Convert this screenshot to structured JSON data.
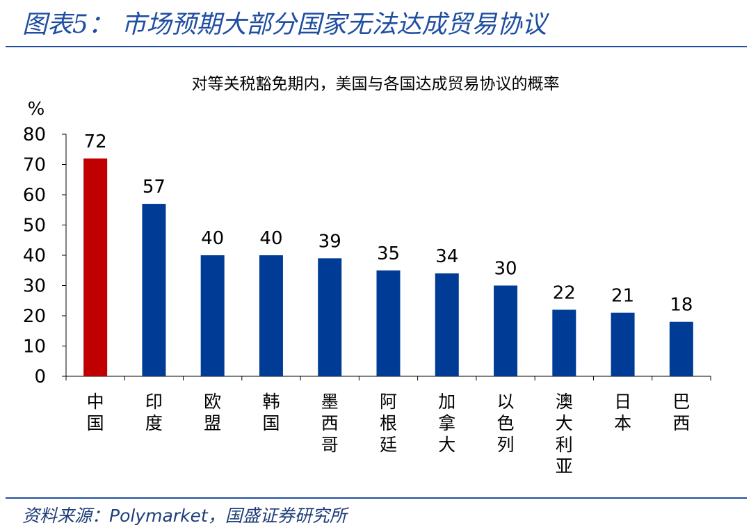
{
  "header": {
    "figure_title": "图表5：  市场预期大部分国家无法达成贸易协议"
  },
  "footer": {
    "source_prefix": "资料来源：",
    "source_name": "Polymarket",
    "source_suffix": "，国盛证券研究所"
  },
  "colors": {
    "brand_blue": "#1f4ea1",
    "bar_default": "#003c96",
    "bar_highlight": "#c00000"
  },
  "chart_data": {
    "type": "bar",
    "title": "对等关税豁免期内，美国与各国达成贸易协议的概率",
    "ylabel": "%",
    "xlabel": "",
    "ylim": [
      0,
      80
    ],
    "yticks": [
      0,
      10,
      20,
      30,
      40,
      50,
      60,
      70,
      80
    ],
    "grid": false,
    "legend": "none",
    "categories": [
      "中国",
      "印度",
      "欧盟",
      "韩国",
      "墨西哥",
      "阿根廷",
      "加拿大",
      "以色列",
      "澳大利亚",
      "日本",
      "巴西"
    ],
    "values": [
      72,
      57,
      40,
      40,
      39,
      35,
      34,
      30,
      22,
      21,
      18
    ],
    "highlight_category": "中国"
  }
}
